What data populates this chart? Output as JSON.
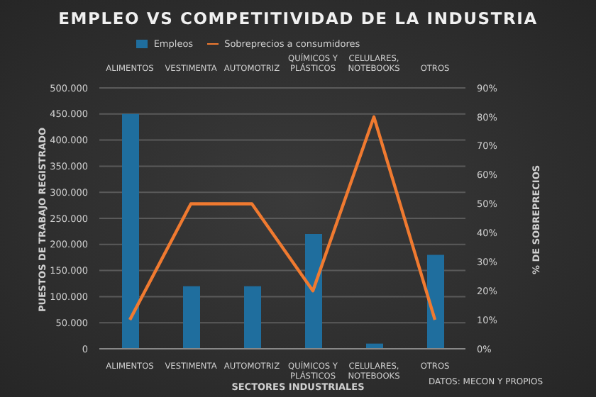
{
  "chart_data": {
    "type": "bar",
    "title": "EMPLEO VS COMPETITIVIDAD DE LA INDUSTRIA",
    "xlabel": "SECTORES INDUSTRIALES",
    "ylabel": "PUESTOS DE TRABAJO REGISTRADO",
    "y2label": "% DE SOBREPRECIOS",
    "categories": [
      "ALIMENTOS",
      "VESTIMENTA",
      "AUTOMOTRIZ",
      "QUÍMICOS Y PLÁSTICOS",
      "CELULARES, NOTEBOOKS",
      "OTROS"
    ],
    "series": [
      {
        "name": "Empleos",
        "color": "#1f6e9e",
        "values": [
          450000,
          120000,
          120000,
          220000,
          10000,
          180000
        ]
      },
      {
        "name": "Sobreprecios a consumidores",
        "type": "line",
        "axis": "y2",
        "color": "#f07a30",
        "values": [
          10,
          50,
          50,
          20,
          80,
          10
        ]
      }
    ],
    "ylim": [
      0,
      500000
    ],
    "yticks": [
      {
        "value": 0,
        "label": "0"
      },
      {
        "value": 50000,
        "label": "50.000"
      },
      {
        "value": 100000,
        "label": "100.000"
      },
      {
        "value": 150000,
        "label": "150.000"
      },
      {
        "value": 200000,
        "label": "200.000"
      },
      {
        "value": 250000,
        "label": "250.000"
      },
      {
        "value": 300000,
        "label": "300.000"
      },
      {
        "value": 350000,
        "label": "350.000"
      },
      {
        "value": 400000,
        "label": "400.000"
      },
      {
        "value": 450000,
        "label": "450.000"
      },
      {
        "value": 500000,
        "label": "500.000"
      }
    ],
    "y2lim": [
      0,
      90
    ],
    "y2ticks": [
      {
        "value": 0,
        "label": "0%"
      },
      {
        "value": 10,
        "label": "10%"
      },
      {
        "value": 20,
        "label": "20%"
      },
      {
        "value": 30,
        "label": "30%"
      },
      {
        "value": 40,
        "label": "40%"
      },
      {
        "value": 50,
        "label": "50%"
      },
      {
        "value": 60,
        "label": "60%"
      },
      {
        "value": 70,
        "label": "70%"
      },
      {
        "value": 80,
        "label": "80%"
      },
      {
        "value": 90,
        "label": "90%"
      }
    ],
    "grid": "y",
    "legend": "top",
    "marker": "none",
    "line_style": "solid",
    "annotations": [
      "DATOS: MECON Y PROPIOS"
    ]
  }
}
